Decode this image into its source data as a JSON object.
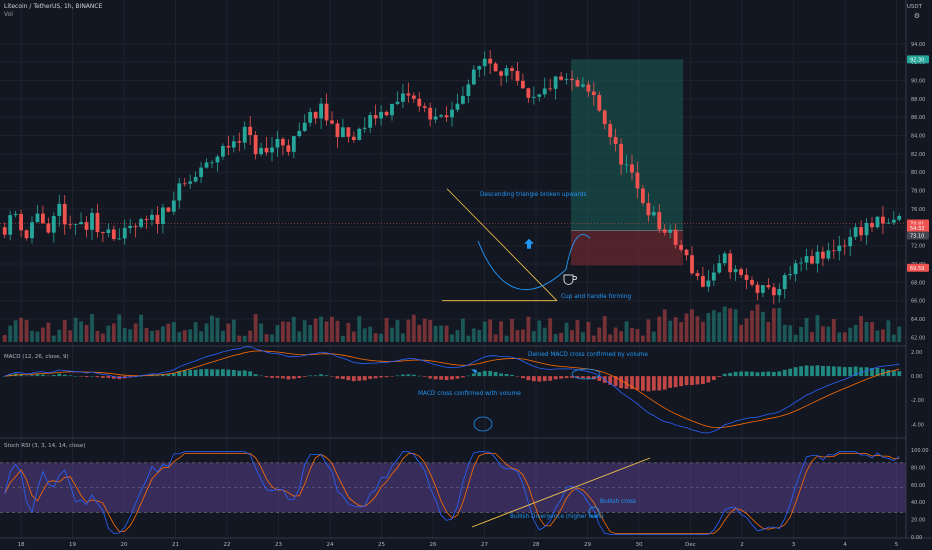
{
  "header": {
    "symbol_line": "Litecoin / TetherUS, 1h, BINANCE",
    "vol_label": "Vol",
    "currency": "USDT"
  },
  "icons": {
    "settings": "gear-icon"
  },
  "colors": {
    "background": "#131722",
    "bull": "#26a69a",
    "bear": "#ef5350",
    "annotation": "#2196f3",
    "macd_line": "#2962ff",
    "signal_line": "#ff6d00",
    "stoch_k": "#2962ff",
    "stoch_d": "#ff6d00",
    "stoch_band": "#7e57c2",
    "trendline": "#f7c948",
    "target_zone": "#1b5e56",
    "stop_zone": "#6b2a2e"
  },
  "chart_data": [
    {
      "type": "candlestick",
      "name": "price",
      "ylim": [
        61.5,
        95.5
      ],
      "price_ticks": [
        "94.00",
        "92.00",
        "90.00",
        "88.00",
        "86.00",
        "84.00",
        "82.00",
        "80.00",
        "78.00",
        "76.00",
        "74.00",
        "72.00",
        "70.00",
        "68.00",
        "66.00",
        "64.00",
        "62.00"
      ],
      "x_ticks": [
        "18",
        "19",
        "20",
        "21",
        "22",
        "23",
        "24",
        "25",
        "26",
        "27",
        "28",
        "29",
        "30",
        "Dec",
        "2",
        "3",
        "4",
        "5"
      ],
      "price_path": [
        [
          0,
          74
        ],
        [
          2,
          75.5
        ],
        [
          4,
          73
        ],
        [
          6,
          75.8
        ],
        [
          8,
          72.8
        ],
        [
          10,
          76.2
        ],
        [
          12,
          73.5
        ],
        [
          14,
          74.8
        ],
        [
          15,
          73
        ],
        [
          16,
          75
        ],
        [
          17,
          73.6
        ],
        [
          18,
          74.1
        ],
        [
          19,
          74
        ],
        [
          21,
          72.7
        ],
        [
          24,
          74
        ],
        [
          28,
          75
        ],
        [
          32,
          78
        ],
        [
          36,
          80
        ],
        [
          40,
          82.5
        ],
        [
          44,
          84.5
        ],
        [
          46,
          82.5
        ],
        [
          48,
          82
        ],
        [
          50,
          83.5
        ],
        [
          52,
          82.8
        ],
        [
          54,
          84
        ],
        [
          56,
          86
        ],
        [
          58,
          86.7
        ],
        [
          60,
          85
        ],
        [
          62,
          84.2
        ],
        [
          64,
          83.5
        ],
        [
          66,
          85
        ],
        [
          68,
          86.2
        ],
        [
          70,
          86.8
        ],
        [
          72,
          87.5
        ],
        [
          74,
          88.5
        ],
        [
          76,
          87
        ],
        [
          78,
          86.4
        ],
        [
          80,
          85.5
        ],
        [
          82,
          86.5
        ],
        [
          84,
          89
        ],
        [
          86,
          90.5
        ],
        [
          88,
          92.5
        ],
        [
          90,
          91.6
        ],
        [
          92,
          91
        ],
        [
          94,
          89.5
        ],
        [
          96,
          87.5
        ],
        [
          98,
          88
        ],
        [
          100,
          89.5
        ],
        [
          102,
          90
        ],
        [
          104,
          89.6
        ],
        [
          106,
          88.9
        ],
        [
          108,
          88.2
        ],
        [
          110,
          85.5
        ],
        [
          112,
          82.5
        ],
        [
          114,
          80.5
        ],
        [
          116,
          78
        ],
        [
          118,
          76
        ],
        [
          120,
          74
        ],
        [
          122,
          73
        ],
        [
          124,
          71.5
        ],
        [
          126,
          69.5
        ],
        [
          128,
          67.8
        ],
        [
          130,
          68.5
        ],
        [
          132,
          70.5
        ],
        [
          134,
          69
        ],
        [
          136,
          68
        ],
        [
          138,
          67.2
        ],
        [
          140,
          66.8
        ],
        [
          142,
          67.5
        ],
        [
          144,
          68.8
        ],
        [
          146,
          70
        ],
        [
          148,
          70.5
        ],
        [
          150,
          70.6
        ],
        [
          152,
          71.8
        ],
        [
          154,
          72.4
        ],
        [
          156,
          73.6
        ],
        [
          158,
          74.1
        ],
        [
          160,
          74.4
        ],
        [
          162,
          74.1
        ],
        [
          163,
          74.9
        ]
      ],
      "last_price": "74.41",
      "price_labels": [
        {
          "value": "92.30",
          "price": 92.3,
          "color": "#26a69a"
        },
        {
          "value": "74.41",
          "price": 74.41,
          "color": "#ef5350"
        },
        {
          "value": "54:33",
          "price": 73.9,
          "color": "#ef5350"
        },
        {
          "value": "73.10",
          "price": 73.1,
          "color": "#434651"
        },
        {
          "value": "69.59",
          "price": 69.59,
          "color": "#ef5350"
        }
      ],
      "position": {
        "entry": 73.65,
        "target": 92.3,
        "stop": 69.85
      },
      "descending_triangle": {
        "apex_price": 66.0,
        "top_price": 78.2
      },
      "annotations": [
        {
          "text": "Descending triangle broken upwards"
        },
        {
          "text": "Cup and handle forming"
        }
      ]
    },
    {
      "type": "histogram+line",
      "name": "MACD (12, 26, close, 9)",
      "ylim": [
        -4.8,
        2.0
      ],
      "ticks": [
        "2.00",
        "0.00",
        "-2.00",
        "-4.00"
      ],
      "annotations": [
        {
          "text": "Denied MACD cross confirmed by volume"
        },
        {
          "text": "MACD cross confirmed with volume"
        }
      ]
    },
    {
      "type": "line",
      "name": "Stoch RSI (3, 3, 14, 14, close)",
      "ylim": [
        0,
        100
      ],
      "ticks": [
        "100.00",
        "80.00",
        "60.00",
        "40.00",
        "20.00",
        "0.00"
      ],
      "band": [
        20,
        80
      ],
      "annotations": [
        {
          "text": "Bullish cross"
        },
        {
          "text": "Bullish Divergence (higher lows)"
        }
      ]
    }
  ]
}
